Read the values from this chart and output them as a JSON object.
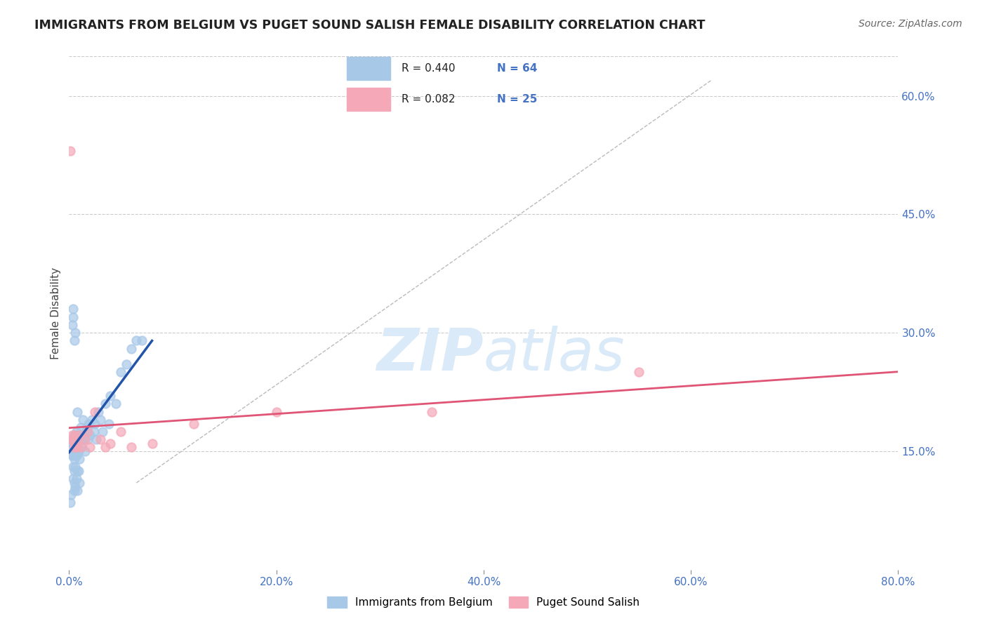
{
  "title": "IMMIGRANTS FROM BELGIUM VS PUGET SOUND SALISH FEMALE DISABILITY CORRELATION CHART",
  "source": "Source: ZipAtlas.com",
  "ylabel": "Female Disability",
  "xlim": [
    0.0,
    0.8
  ],
  "ylim": [
    0.0,
    0.65
  ],
  "xticks": [
    0.0,
    0.2,
    0.4,
    0.6,
    0.8
  ],
  "xtick_labels": [
    "0.0%",
    "20.0%",
    "40.0%",
    "60.0%",
    "80.0%"
  ],
  "yticks": [
    0.15,
    0.3,
    0.45,
    0.6
  ],
  "ytick_labels": [
    "15.0%",
    "30.0%",
    "45.0%",
    "60.0%"
  ],
  "blue_R": 0.44,
  "blue_N": 64,
  "pink_R": 0.082,
  "pink_N": 25,
  "blue_color": "#a8c8e8",
  "pink_color": "#f4a8b8",
  "blue_line_color": "#2255aa",
  "pink_line_color": "#e05575",
  "axis_color": "#4472c4",
  "watermark_color": "#daeaf8",
  "background_color": "#ffffff",
  "grid_color": "#cccccc",
  "blue_x": [
    0.001,
    0.002,
    0.003,
    0.003,
    0.003,
    0.004,
    0.004,
    0.004,
    0.004,
    0.005,
    0.005,
    0.005,
    0.005,
    0.005,
    0.005,
    0.006,
    0.006,
    0.006,
    0.006,
    0.007,
    0.007,
    0.007,
    0.008,
    0.008,
    0.008,
    0.008,
    0.009,
    0.009,
    0.009,
    0.01,
    0.01,
    0.01,
    0.011,
    0.012,
    0.012,
    0.013,
    0.013,
    0.014,
    0.015,
    0.016,
    0.017,
    0.018,
    0.019,
    0.02,
    0.022,
    0.024,
    0.025,
    0.026,
    0.028,
    0.03,
    0.032,
    0.035,
    0.038,
    0.04,
    0.045,
    0.05,
    0.055,
    0.06,
    0.065,
    0.07,
    0.003,
    0.004,
    0.005,
    0.006
  ],
  "blue_y": [
    0.085,
    0.095,
    0.145,
    0.155,
    0.16,
    0.115,
    0.13,
    0.145,
    0.165,
    0.1,
    0.11,
    0.125,
    0.14,
    0.155,
    0.17,
    0.105,
    0.13,
    0.145,
    0.17,
    0.115,
    0.145,
    0.175,
    0.1,
    0.125,
    0.155,
    0.2,
    0.125,
    0.15,
    0.165,
    0.11,
    0.14,
    0.17,
    0.18,
    0.155,
    0.165,
    0.17,
    0.19,
    0.165,
    0.15,
    0.175,
    0.18,
    0.165,
    0.185,
    0.17,
    0.19,
    0.175,
    0.185,
    0.165,
    0.2,
    0.19,
    0.175,
    0.21,
    0.185,
    0.22,
    0.21,
    0.25,
    0.26,
    0.28,
    0.29,
    0.29,
    0.31,
    0.33,
    0.29,
    0.3
  ],
  "blue_outlier_x": [
    0.004
  ],
  "blue_outlier_y": [
    0.32
  ],
  "pink_x": [
    0.002,
    0.004,
    0.005,
    0.005,
    0.006,
    0.007,
    0.008,
    0.01,
    0.012,
    0.015,
    0.018,
    0.02,
    0.025,
    0.03,
    0.035,
    0.04,
    0.05,
    0.06,
    0.08,
    0.12,
    0.2,
    0.35,
    0.55,
    0.002,
    0.003
  ],
  "pink_y": [
    0.165,
    0.165,
    0.17,
    0.155,
    0.155,
    0.16,
    0.155,
    0.17,
    0.155,
    0.165,
    0.175,
    0.155,
    0.2,
    0.165,
    0.155,
    0.16,
    0.175,
    0.155,
    0.16,
    0.185,
    0.2,
    0.2,
    0.25,
    0.165,
    0.17
  ],
  "pink_outlier_x": [
    0.001
  ],
  "pink_outlier_y": [
    0.53
  ],
  "legend_blue_label": "R = 0.440   N = 64",
  "legend_pink_label": "R = 0.082   N = 25",
  "legend_items": [
    {
      "label": "Immigrants from Belgium",
      "color": "#a8c8e8"
    },
    {
      "label": "Puget Sound Salish",
      "color": "#f4a8b8"
    }
  ],
  "dash_line_x0": 0.065,
  "dash_line_x1": 0.62,
  "dash_line_y0": 0.11,
  "dash_line_y1": 0.62
}
